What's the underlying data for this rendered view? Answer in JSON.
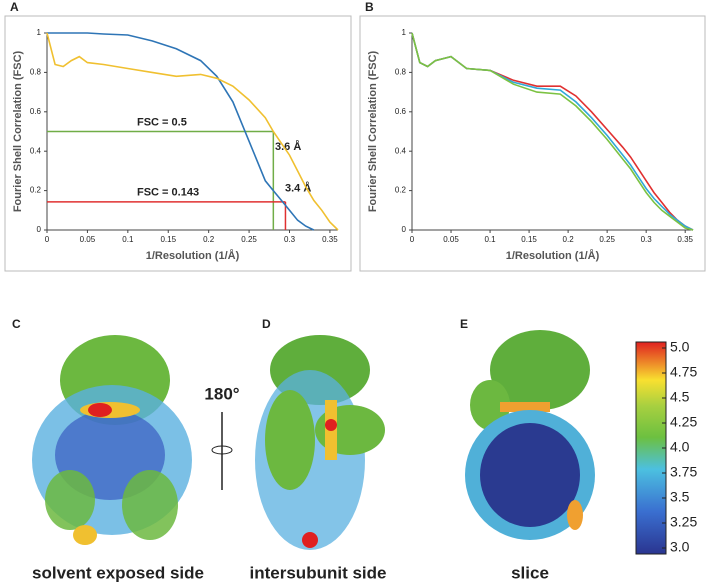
{
  "chart_data": [
    {
      "type": "line",
      "panel": "A",
      "xlabel": "1/Resolution (1/Å)",
      "ylabel": "Fourier Shell Correlation (FSC)",
      "x": [
        0,
        0.01,
        0.02,
        0.03,
        0.04,
        0.05,
        0.07,
        0.1,
        0.13,
        0.16,
        0.19,
        0.21,
        0.23,
        0.25,
        0.27,
        0.28,
        0.29,
        0.3,
        0.31,
        0.32,
        0.33,
        0.34,
        0.35,
        0.36
      ],
      "series": [
        {
          "color": "#2e75b6",
          "values": [
            1,
            1,
            1,
            1,
            1,
            1,
            0.995,
            0.99,
            0.96,
            0.92,
            0.86,
            0.78,
            0.65,
            0.45,
            0.25,
            0.2,
            0.15,
            0.1,
            0.05,
            0.02,
            0,
            null,
            null,
            null
          ]
        },
        {
          "color": "#f0c030",
          "values": [
            1,
            0.84,
            0.83,
            0.86,
            0.88,
            0.85,
            0.84,
            0.82,
            0.8,
            0.78,
            0.79,
            0.77,
            0.73,
            0.66,
            0.57,
            0.5,
            0.44,
            0.38,
            0.3,
            0.22,
            0.15,
            0.1,
            0.04,
            0
          ]
        }
      ],
      "hlines": [
        {
          "value": 0.5,
          "x_end": 0.28,
          "color": "#70ad47",
          "label": "FSC = 0.5"
        },
        {
          "value": 0.143,
          "x_end": 0.295,
          "color": "#e03030",
          "label": "FSC = 0.143"
        }
      ],
      "annotations": [
        "3.6 Å",
        "3.4 Å"
      ],
      "xlim": [
        0,
        0.36
      ],
      "ylim": [
        0,
        1
      ],
      "xticks": [
        0,
        0.05,
        0.1,
        0.15,
        0.2,
        0.25,
        0.3,
        0.35
      ],
      "yticks": [
        0,
        0.2,
        0.4,
        0.6,
        0.8,
        1
      ]
    },
    {
      "type": "line",
      "panel": "B",
      "xlabel": "1/Resolution (1/Å)",
      "ylabel": "Fourier Shell Correlation (FSC)",
      "x": [
        0,
        0.01,
        0.02,
        0.03,
        0.04,
        0.05,
        0.07,
        0.1,
        0.13,
        0.16,
        0.19,
        0.21,
        0.23,
        0.25,
        0.27,
        0.28,
        0.29,
        0.3,
        0.31,
        0.32,
        0.33,
        0.34,
        0.35,
        0.36
      ],
      "series": [
        {
          "color": "#e03030",
          "values": [
            1,
            0.85,
            0.83,
            0.86,
            0.87,
            0.88,
            0.82,
            0.81,
            0.76,
            0.73,
            0.73,
            0.68,
            0.6,
            0.51,
            0.42,
            0.37,
            0.31,
            0.25,
            0.19,
            0.14,
            0.09,
            0.05,
            0.02,
            0
          ]
        },
        {
          "color": "#31a8d8",
          "values": [
            1,
            0.85,
            0.83,
            0.86,
            0.87,
            0.88,
            0.82,
            0.81,
            0.75,
            0.72,
            0.71,
            0.65,
            0.57,
            0.48,
            0.38,
            0.33,
            0.27,
            0.21,
            0.16,
            0.12,
            0.08,
            0.05,
            0.02,
            0
          ]
        },
        {
          "color": "#7cc242",
          "values": [
            1,
            0.85,
            0.83,
            0.86,
            0.87,
            0.88,
            0.82,
            0.81,
            0.74,
            0.7,
            0.69,
            0.63,
            0.55,
            0.46,
            0.36,
            0.31,
            0.25,
            0.19,
            0.14,
            0.1,
            0.07,
            0.04,
            0.01,
            0
          ]
        }
      ],
      "xlim": [
        0,
        0.36
      ],
      "ylim": [
        0,
        1
      ],
      "xticks": [
        0,
        0.05,
        0.1,
        0.15,
        0.2,
        0.25,
        0.3,
        0.35
      ],
      "yticks": [
        0,
        0.2,
        0.4,
        0.6,
        0.8,
        1
      ]
    }
  ],
  "panels": [
    {
      "label": "C",
      "caption": "solvent exposed side"
    },
    {
      "label": "D",
      "caption": "intersubunit side"
    },
    {
      "label": "E",
      "caption": "slice"
    }
  ],
  "rotation_label": "180°",
  "colorbar": {
    "lim": [
      3,
      5
    ],
    "ticks": [
      {
        "value": 5,
        "label": "5.0"
      },
      4.75,
      4.5,
      4.25,
      {
        "value": 4,
        "label": "4.0"
      },
      3.75,
      3.5,
      3.25,
      {
        "value": 3,
        "label": "3.0"
      }
    ]
  }
}
